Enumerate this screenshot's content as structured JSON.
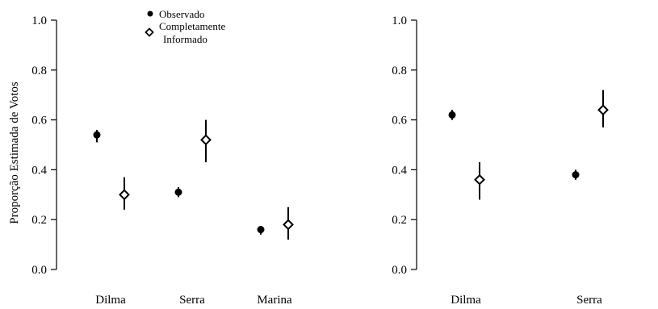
{
  "chart_data": [
    {
      "type": "scatter",
      "ylabel": "Proporção Estimada de Votos",
      "ylim": [
        0.0,
        1.0
      ],
      "yticks": [
        "0.0",
        "0.2",
        "0.4",
        "0.6",
        "0.8",
        "1.0"
      ],
      "categories": [
        "Dilma",
        "Serra",
        "Marina"
      ],
      "legend": {
        "placement": "top-center",
        "entries": [
          {
            "label": "Observado",
            "marker": "filled-circle"
          },
          {
            "label_lines": [
              "Completamente",
              "Informado"
            ],
            "marker": "open-diamond"
          }
        ]
      },
      "series": [
        {
          "name": "Observado",
          "marker": "filled-circle",
          "values": [
            0.54,
            0.31,
            0.16
          ],
          "error": [
            [
              0.51,
              0.56
            ],
            [
              0.29,
              0.33
            ],
            [
              0.14,
              0.17
            ]
          ]
        },
        {
          "name": "Completamente Informado",
          "marker": "open-diamond",
          "values": [
            0.3,
            0.52,
            0.18
          ],
          "error": [
            [
              0.24,
              0.37
            ],
            [
              0.43,
              0.6
            ],
            [
              0.12,
              0.25
            ]
          ]
        }
      ]
    },
    {
      "type": "scatter",
      "ylabel": "",
      "ylim": [
        0.0,
        1.0
      ],
      "yticks": [
        "0.0",
        "0.2",
        "0.4",
        "0.6",
        "0.8",
        "1.0"
      ],
      "categories": [
        "Dilma",
        "Serra"
      ],
      "series": [
        {
          "name": "Observado",
          "marker": "filled-circle",
          "values": [
            0.62,
            0.38
          ],
          "error": [
            [
              0.6,
              0.64
            ],
            [
              0.36,
              0.4
            ]
          ]
        },
        {
          "name": "Completamente Informado",
          "marker": "open-diamond",
          "values": [
            0.36,
            0.64
          ],
          "error": [
            [
              0.28,
              0.43
            ],
            [
              0.57,
              0.72
            ]
          ]
        }
      ]
    }
  ]
}
